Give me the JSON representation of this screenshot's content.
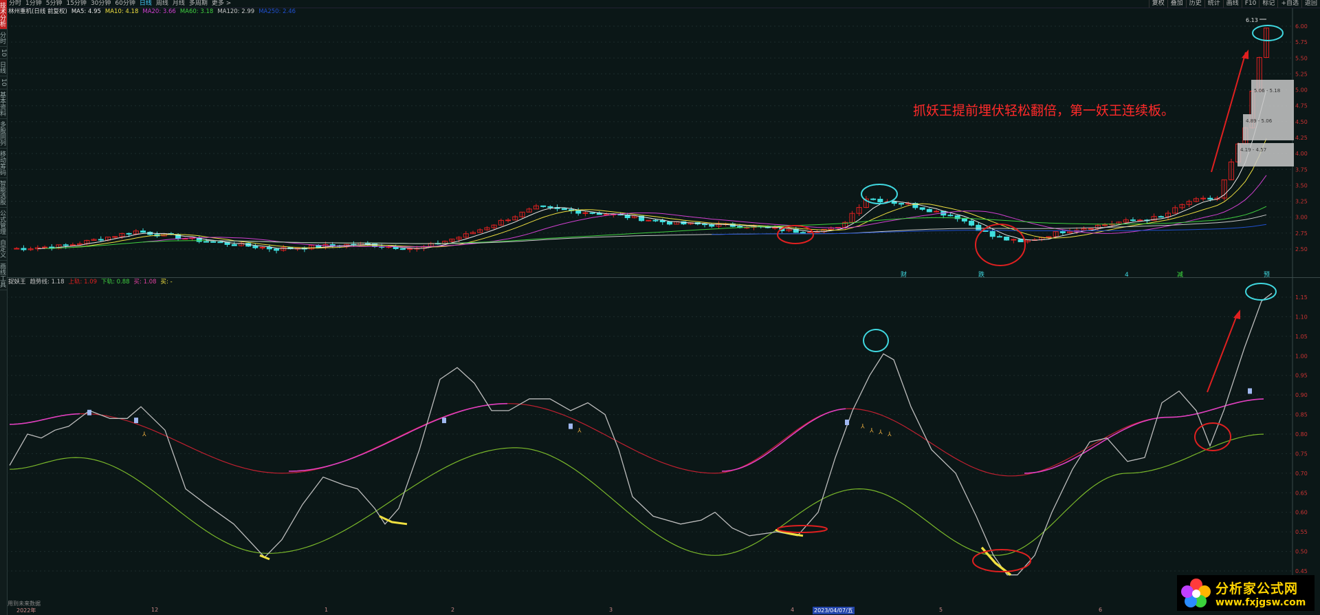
{
  "left_tabs": [
    "技术分析",
    "分时",
    "10",
    "日线",
    "10",
    "基本资料",
    "多股同列",
    "移动筹码",
    "智能选股",
    "公式管理",
    "自定义",
    "画线工具"
  ],
  "toolbar": {
    "periods": [
      "分时",
      "1分钟",
      "5分钟",
      "15分钟",
      "30分钟",
      "60分钟",
      "日线",
      "周线",
      "月线",
      "多周期",
      "更多 >"
    ],
    "active_period": "日线",
    "right_tools": [
      "复权",
      "叠加",
      "历史",
      "统计",
      "画线",
      "F10",
      "标记",
      "+自选",
      "返回"
    ]
  },
  "main_legend": {
    "stock": "林州重机(日线 前复权)",
    "items": [
      {
        "label": "MA5: 4.95",
        "color": "#e8e8e8"
      },
      {
        "label": "MA10: 4.18",
        "color": "#f0e040"
      },
      {
        "label": "MA20: 3.66",
        "color": "#d040d0"
      },
      {
        "label": "MA60: 3.18",
        "color": "#40d040"
      },
      {
        "label": "MA120: 2.99",
        "color": "#c8c8c8"
      },
      {
        "label": "MA250: 2.46",
        "color": "#2050d0"
      }
    ]
  },
  "sub_legend": {
    "name": "捉妖王",
    "items": [
      {
        "label": "趋势线: 1.18",
        "color": "#c8c8c8"
      },
      {
        "label": "上轨: 1.09",
        "color": "#e02020"
      },
      {
        "label": "下轨: 0.88",
        "color": "#40d040"
      },
      {
        "label": "买: 1.08",
        "color": "#e040a0"
      },
      {
        "label": "买: -",
        "color": "#f0e040"
      }
    ]
  },
  "annotation": "抓妖王提前埋伏轻松翻倍，第一妖王连续板。",
  "price_axis": {
    "ticks": [
      "6.00",
      "5.75",
      "5.50",
      "5.25",
      "5.00",
      "4.75",
      "4.50",
      "4.25",
      "4.00",
      "3.75",
      "3.50",
      "3.25",
      "3.00",
      "2.75",
      "2.50"
    ],
    "high_label": "6.13"
  },
  "sub_axis": {
    "ticks": [
      "1.15",
      "1.10",
      "1.05",
      "1.00",
      "0.95",
      "0.90",
      "0.85",
      "0.80",
      "0.75",
      "0.70",
      "0.65",
      "0.60",
      "0.55",
      "0.50",
      "0.45"
    ]
  },
  "chip_boxes": [
    {
      "label": "5.06 - 5.18"
    },
    {
      "label": "4.89 - 5.06"
    },
    {
      "label": "4.19 - 4.57"
    }
  ],
  "event_marks": [
    "财",
    "跌",
    "4",
    "减",
    "预"
  ],
  "x_axis": {
    "labels": [
      "2022年",
      "12",
      "1",
      "2",
      "3",
      "4",
      "2023/04/07/五",
      "5",
      "6"
    ]
  },
  "bottom_note": "用到未来数据",
  "watermark": {
    "cn": "分析家公式网",
    "url": "www.fxjgsw.com"
  },
  "colors": {
    "up": "#e02020",
    "down": "#40e0e0",
    "accent": "#ff2a2a"
  }
}
